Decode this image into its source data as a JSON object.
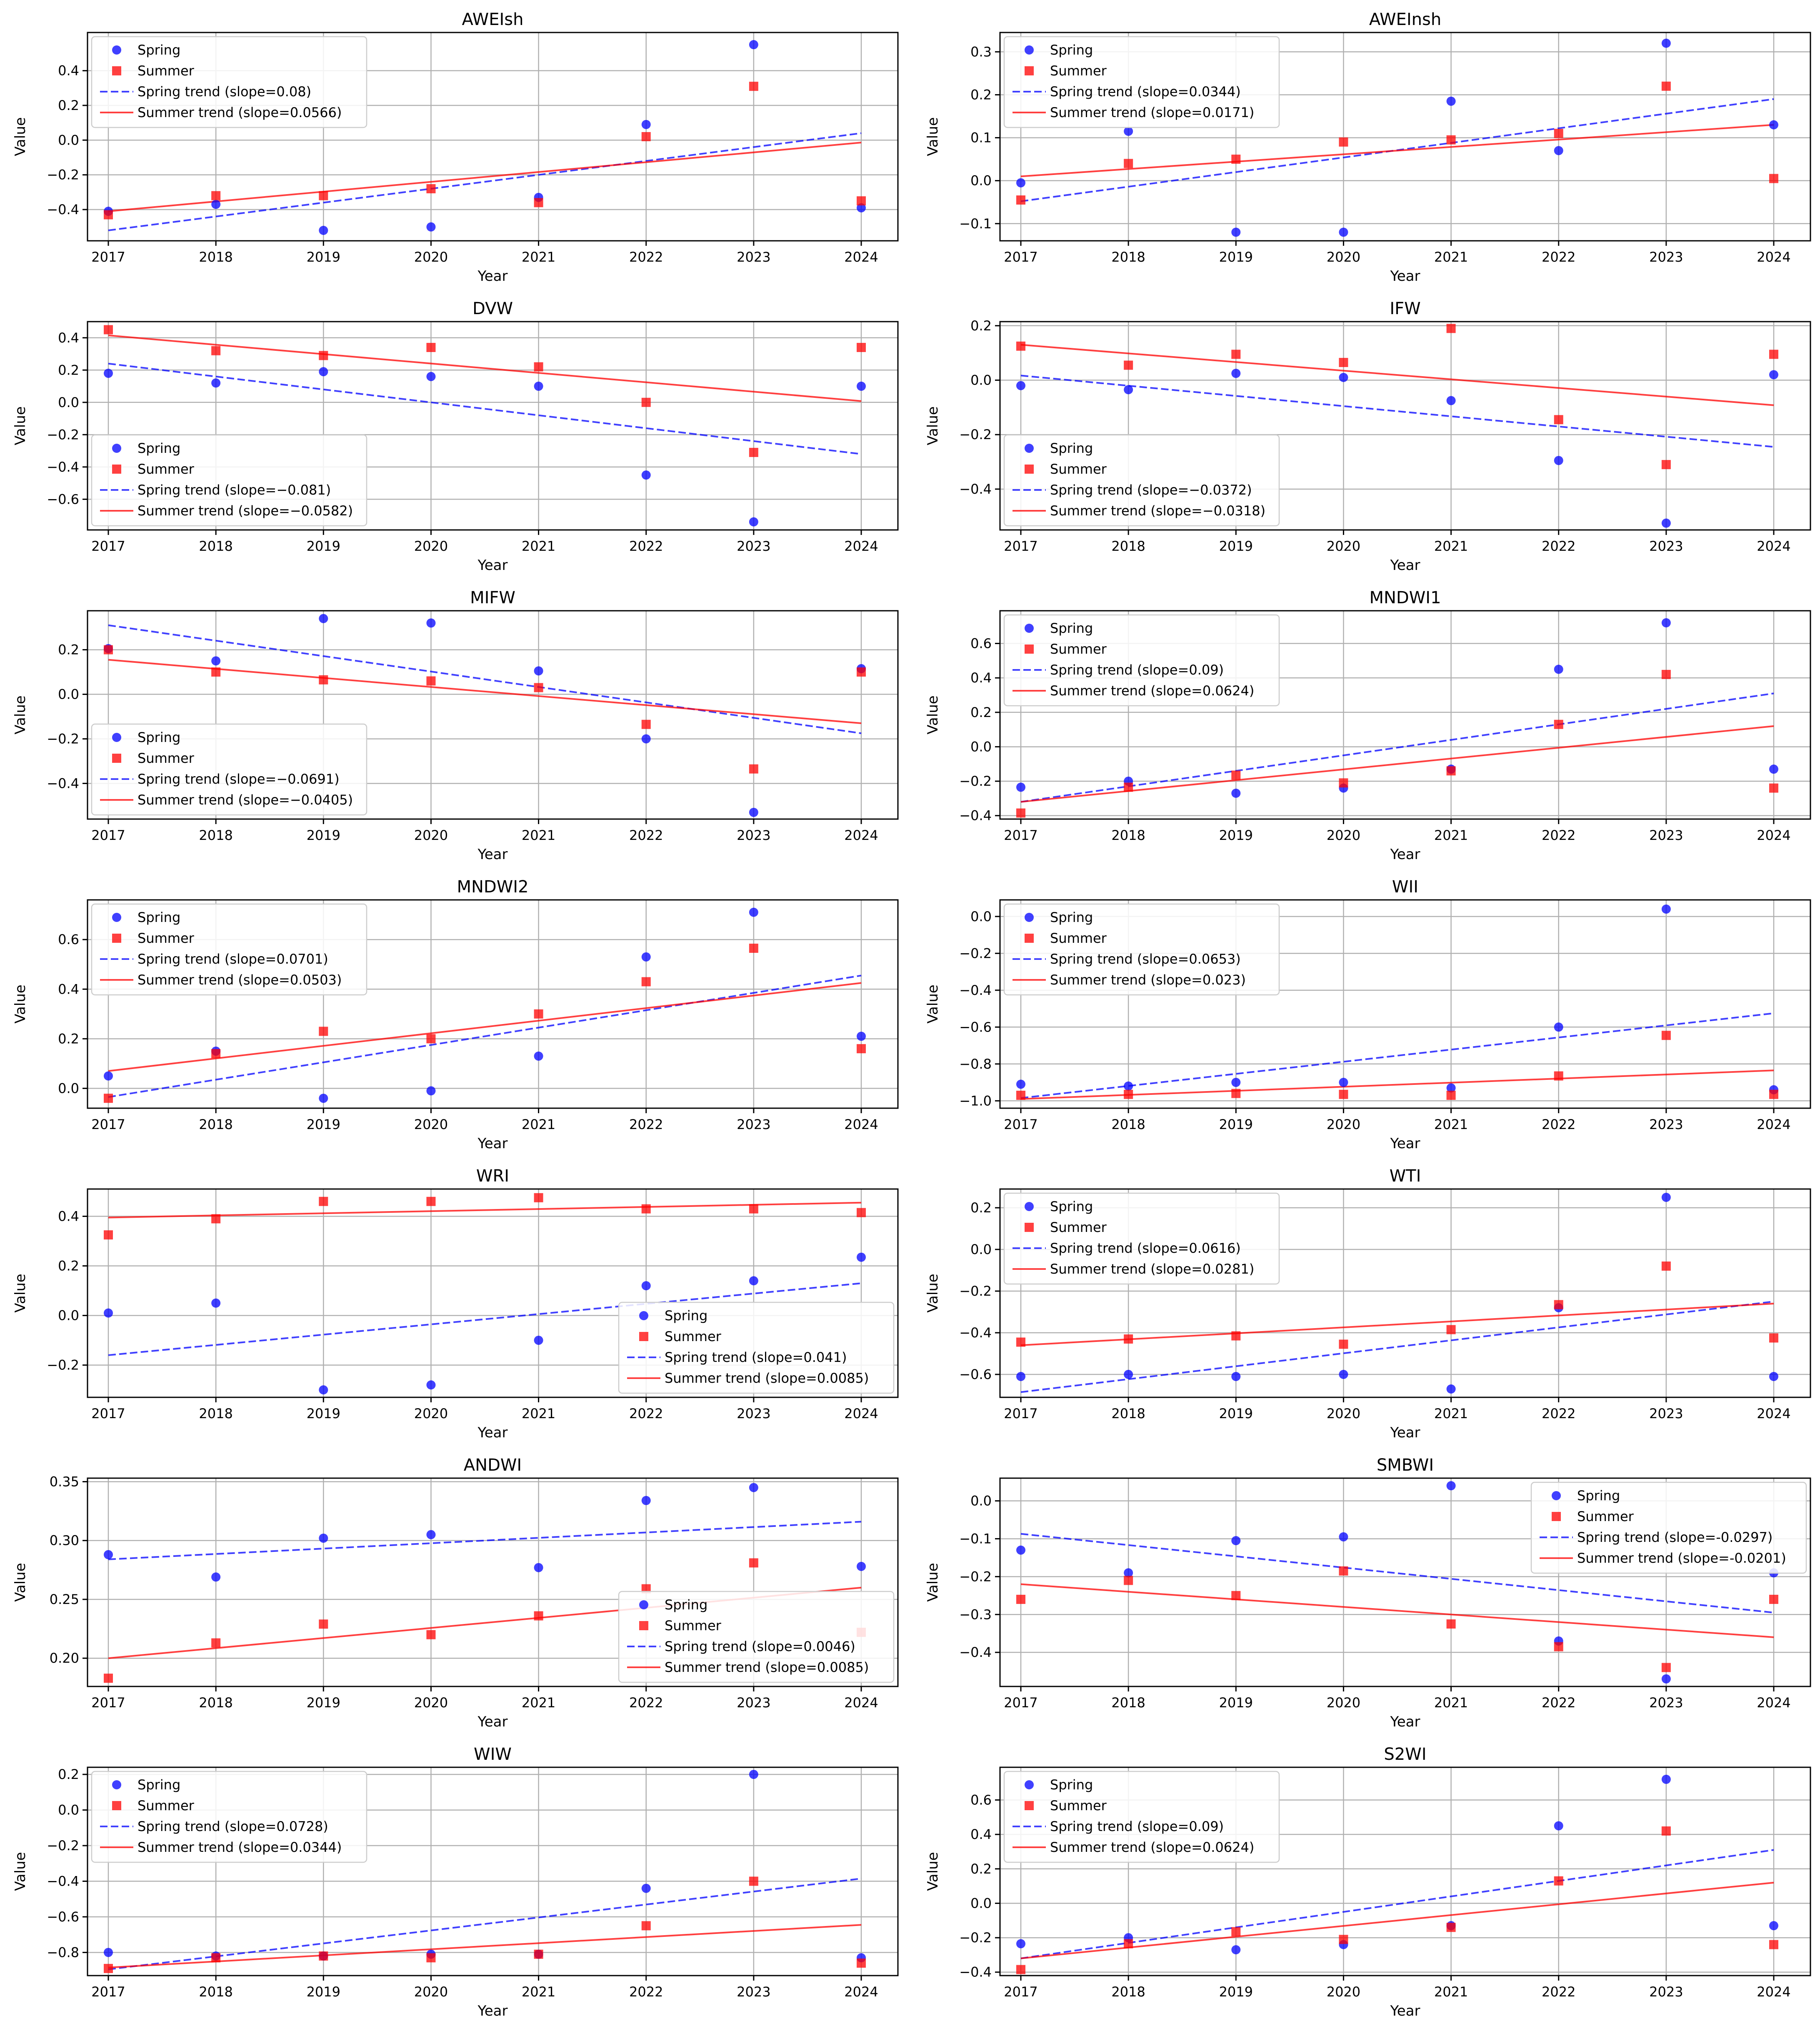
{
  "figure": {
    "xlabel": "Year",
    "ylabel": "Value"
  },
  "chart_data": [
    {
      "type": "scatter",
      "title": "AWEIsh",
      "x": [
        2017,
        2018,
        2019,
        2020,
        2021,
        2022,
        2023,
        2024
      ],
      "spring": [
        -0.41,
        -0.37,
        -0.52,
        -0.5,
        -0.33,
        0.09,
        0.55,
        -0.39
      ],
      "summer": [
        -0.43,
        -0.32,
        -0.32,
        -0.28,
        -0.36,
        0.02,
        0.31,
        -0.35
      ],
      "spring_trend": {
        "start": -0.52,
        "end": 0.04,
        "label": "Spring trend (slope=0.08)"
      },
      "summer_trend": {
        "start": -0.41,
        "end": -0.014,
        "label": "Summer trend (slope=0.0566)"
      },
      "ylim": [
        -0.58,
        0.62
      ],
      "yticks": [
        -0.4,
        -0.2,
        0.0,
        0.2,
        0.4
      ],
      "ytick_labels": [
        "−0.4",
        "−0.2",
        "0.0",
        "0.2",
        "0.4"
      ],
      "legend": "upper-left",
      "legend_labels": [
        "Spring",
        "Summer"
      ]
    },
    {
      "type": "scatter",
      "title": "AWEInsh",
      "x": [
        2017,
        2018,
        2019,
        2020,
        2021,
        2022,
        2023,
        2024
      ],
      "spring": [
        -0.005,
        0.115,
        -0.12,
        -0.12,
        0.185,
        0.07,
        0.32,
        0.13
      ],
      "summer": [
        -0.045,
        0.04,
        0.05,
        0.09,
        0.095,
        0.11,
        0.22,
        0.005
      ],
      "spring_trend": {
        "start": -0.048,
        "end": 0.19,
        "label": "Spring trend (slope=0.0344)"
      },
      "summer_trend": {
        "start": 0.01,
        "end": 0.13,
        "label": "Summer trend (slope=0.0171)"
      },
      "ylim": [
        -0.14,
        0.345
      ],
      "yticks": [
        -0.1,
        0.0,
        0.1,
        0.2,
        0.3
      ],
      "ytick_labels": [
        "−0.1",
        "0.0",
        "0.1",
        "0.2",
        "0.3"
      ],
      "legend": "upper-left",
      "legend_labels": [
        "Spring",
        "Summer"
      ]
    },
    {
      "type": "scatter",
      "title": "DVW",
      "x": [
        2017,
        2018,
        2019,
        2020,
        2021,
        2022,
        2023,
        2024
      ],
      "spring": [
        0.18,
        0.12,
        0.19,
        0.16,
        0.1,
        -0.45,
        -0.74,
        0.1
      ],
      "summer": [
        0.45,
        0.32,
        0.29,
        0.34,
        0.22,
        0.0,
        -0.31,
        0.34
      ],
      "spring_trend": {
        "start": 0.24,
        "end": -0.32,
        "label": "Spring trend (slope=−0.081)"
      },
      "summer_trend": {
        "start": 0.415,
        "end": 0.008,
        "label": "Summer trend (slope=−0.0582)"
      },
      "ylim": [
        -0.79,
        0.5
      ],
      "yticks": [
        -0.6,
        -0.4,
        -0.2,
        0.0,
        0.2,
        0.4
      ],
      "ytick_labels": [
        "−0.6",
        "−0.4",
        "−0.2",
        "0.0",
        "0.2",
        "0.4"
      ],
      "legend": "lower-left",
      "legend_labels": [
        "Spring",
        "Summer"
      ]
    },
    {
      "type": "scatter",
      "title": "IFW",
      "x": [
        2017,
        2018,
        2019,
        2020,
        2021,
        2022,
        2023,
        2024
      ],
      "spring": [
        -0.02,
        -0.035,
        0.025,
        0.01,
        -0.075,
        -0.295,
        -0.525,
        0.02
      ],
      "summer": [
        0.125,
        0.055,
        0.095,
        0.065,
        0.19,
        -0.145,
        -0.31,
        0.095
      ],
      "spring_trend": {
        "start": 0.017,
        "end": -0.245,
        "label": "Spring trend (slope=−0.0372)"
      },
      "summer_trend": {
        "start": 0.13,
        "end": -0.092,
        "label": "Summer trend (slope=−0.0318)"
      },
      "ylim": [
        -0.55,
        0.215
      ],
      "yticks": [
        -0.4,
        -0.2,
        0.0,
        0.2
      ],
      "ytick_labels": [
        "−0.4",
        "−0.2",
        "0.0",
        "0.2"
      ],
      "legend": "lower-left",
      "legend_labels": [
        "Spring",
        "Summer"
      ]
    },
    {
      "type": "scatter",
      "title": "MIFW",
      "x": [
        2017,
        2018,
        2019,
        2020,
        2021,
        2022,
        2023,
        2024
      ],
      "spring": [
        0.205,
        0.15,
        0.34,
        0.32,
        0.105,
        -0.2,
        -0.53,
        0.115
      ],
      "summer": [
        0.2,
        0.1,
        0.065,
        0.06,
        0.03,
        -0.135,
        -0.335,
        0.1
      ],
      "spring_trend": {
        "start": 0.31,
        "end": -0.175,
        "label": "Spring trend (slope=−0.0691)"
      },
      "summer_trend": {
        "start": 0.155,
        "end": -0.13,
        "label": "Summer trend (slope=−0.0405)"
      },
      "ylim": [
        -0.56,
        0.375
      ],
      "yticks": [
        -0.4,
        -0.2,
        0.0,
        0.2
      ],
      "ytick_labels": [
        "−0.4",
        "−0.2",
        "0.0",
        "0.2"
      ],
      "legend": "lower-left",
      "legend_labels": [
        "Spring",
        "Summer"
      ]
    },
    {
      "type": "scatter",
      "title": "MNDWI1",
      "x": [
        2017,
        2018,
        2019,
        2020,
        2021,
        2022,
        2023,
        2024
      ],
      "spring": [
        -0.235,
        -0.2,
        -0.27,
        -0.24,
        -0.13,
        0.45,
        0.72,
        -0.13
      ],
      "summer": [
        -0.385,
        -0.235,
        -0.165,
        -0.21,
        -0.14,
        0.13,
        0.42,
        -0.24
      ],
      "spring_trend": {
        "start": -0.32,
        "end": 0.31,
        "label": "Spring trend (slope=0.09)"
      },
      "summer_trend": {
        "start": -0.32,
        "end": 0.12,
        "label": "Summer trend (slope=0.0624)"
      },
      "ylim": [
        -0.42,
        0.79
      ],
      "yticks": [
        -0.4,
        -0.2,
        0.0,
        0.2,
        0.4,
        0.6
      ],
      "ytick_labels": [
        "−0.4",
        "−0.2",
        "0.0",
        "0.2",
        "0.4",
        "0.6"
      ],
      "legend": "upper-left",
      "legend_labels": [
        "Spring",
        "Summer"
      ]
    },
    {
      "type": "scatter",
      "title": "MNDWI2",
      "x": [
        2017,
        2018,
        2019,
        2020,
        2021,
        2022,
        2023,
        2024
      ],
      "spring": [
        0.05,
        0.15,
        -0.04,
        -0.01,
        0.13,
        0.53,
        0.71,
        0.21
      ],
      "summer": [
        -0.04,
        0.14,
        0.23,
        0.2,
        0.3,
        0.43,
        0.565,
        0.16
      ],
      "spring_trend": {
        "start": -0.035,
        "end": 0.455,
        "label": "Spring trend (slope=0.0701)"
      },
      "summer_trend": {
        "start": 0.07,
        "end": 0.425,
        "label": "Summer trend (slope=0.0503)"
      },
      "ylim": [
        -0.08,
        0.76
      ],
      "yticks": [
        0.0,
        0.2,
        0.4,
        0.6
      ],
      "ytick_labels": [
        "0.0",
        "0.2",
        "0.4",
        "0.6"
      ],
      "legend": "upper-left",
      "legend_labels": [
        "Spring",
        "Summer"
      ]
    },
    {
      "type": "scatter",
      "title": "WII",
      "x": [
        2017,
        2018,
        2019,
        2020,
        2021,
        2022,
        2023,
        2024
      ],
      "spring": [
        -0.91,
        -0.92,
        -0.9,
        -0.9,
        -0.93,
        -0.6,
        0.04,
        -0.94
      ],
      "summer": [
        -0.97,
        -0.965,
        -0.96,
        -0.965,
        -0.97,
        -0.865,
        -0.645,
        -0.965
      ],
      "spring_trend": {
        "start": -0.985,
        "end": -0.525,
        "label": "Spring trend (slope=0.0653)"
      },
      "summer_trend": {
        "start": -0.99,
        "end": -0.835,
        "label": "Summer trend (slope=0.023)"
      },
      "ylim": [
        -1.04,
        0.09
      ],
      "yticks": [
        -1.0,
        -0.8,
        -0.6,
        -0.4,
        -0.2,
        0.0
      ],
      "ytick_labels": [
        "−1.0",
        "−0.8",
        "−0.6",
        "−0.4",
        "−0.2",
        "0.0"
      ],
      "legend": "upper-left",
      "legend_labels": [
        "Spring",
        "Summer"
      ]
    },
    {
      "type": "scatter",
      "title": "WRI",
      "x": [
        2017,
        2018,
        2019,
        2020,
        2021,
        2022,
        2023,
        2024
      ],
      "spring": [
        0.01,
        0.05,
        -0.3,
        -0.28,
        -0.1,
        0.12,
        0.14,
        0.235
      ],
      "summer": [
        0.325,
        0.39,
        0.46,
        0.46,
        0.475,
        0.43,
        0.43,
        0.415
      ],
      "spring_trend": {
        "start": -0.16,
        "end": 0.13,
        "label": "Spring trend (slope=0.041)"
      },
      "summer_trend": {
        "start": 0.395,
        "end": 0.455,
        "label": "Summer trend (slope=0.0085)"
      },
      "ylim": [
        -0.33,
        0.51
      ],
      "yticks": [
        -0.2,
        0.0,
        0.2,
        0.4
      ],
      "ytick_labels": [
        "−0.2",
        "0.0",
        "0.2",
        "0.4"
      ],
      "legend": "lower-right",
      "legend_labels": [
        "Spring",
        "Summer"
      ]
    },
    {
      "type": "scatter",
      "title": "WTI",
      "x": [
        2017,
        2018,
        2019,
        2020,
        2021,
        2022,
        2023,
        2024
      ],
      "spring": [
        -0.61,
        -0.6,
        -0.61,
        -0.6,
        -0.67,
        -0.28,
        0.25,
        -0.61
      ],
      "summer": [
        -0.445,
        -0.43,
        -0.415,
        -0.455,
        -0.385,
        -0.265,
        -0.08,
        -0.425
      ],
      "spring_trend": {
        "start": -0.685,
        "end": -0.25,
        "label": "Spring trend (slope=0.0616)"
      },
      "summer_trend": {
        "start": -0.46,
        "end": -0.26,
        "label": "Summer trend (slope=0.0281)"
      },
      "ylim": [
        -0.71,
        0.29
      ],
      "yticks": [
        -0.6,
        -0.4,
        -0.2,
        0.0,
        0.2
      ],
      "ytick_labels": [
        "−0.6",
        "−0.4",
        "−0.2",
        "0.0",
        "0.2"
      ],
      "legend": "upper-left",
      "legend_labels": [
        "Spring",
        "Summer"
      ]
    },
    {
      "type": "scatter",
      "title": "ANDWI",
      "x": [
        2017,
        2018,
        2019,
        2020,
        2021,
        2022,
        2023,
        2024
      ],
      "spring": [
        0.288,
        0.269,
        0.302,
        0.305,
        0.277,
        0.334,
        0.345,
        0.278
      ],
      "summer": [
        0.183,
        0.213,
        0.229,
        0.22,
        0.236,
        0.259,
        0.281,
        0.222
      ],
      "spring_trend": {
        "start": 0.284,
        "end": 0.316,
        "label": "Spring trend (slope=0.0046)"
      },
      "summer_trend": {
        "start": 0.2,
        "end": 0.26,
        "label": "Summer trend (slope=0.0085)"
      },
      "ylim": [
        0.176,
        0.353
      ],
      "yticks": [
        0.2,
        0.25,
        0.3,
        0.35
      ],
      "ytick_labels": [
        "0.20",
        "0.25",
        "0.30",
        "0.35"
      ],
      "legend": "lower-right",
      "legend_labels": [
        "Spring",
        "Summer"
      ]
    },
    {
      "type": "scatter",
      "title": "SMBWI",
      "x": [
        2017,
        2018,
        2019,
        2020,
        2021,
        2022,
        2023,
        2024
      ],
      "spring": [
        -0.13,
        -0.19,
        -0.105,
        -0.095,
        0.04,
        -0.37,
        -0.47,
        -0.19
      ],
      "summer": [
        -0.26,
        -0.21,
        -0.25,
        -0.185,
        -0.325,
        -0.385,
        -0.44,
        -0.26
      ],
      "spring_trend": {
        "start": -0.087,
        "end": -0.295,
        "label": "Spring trend (slope=-0.0297)"
      },
      "summer_trend": {
        "start": -0.22,
        "end": -0.36,
        "label": "Summer trend (slope=-0.0201)"
      },
      "ylim": [
        -0.49,
        0.06
      ],
      "yticks": [
        -0.4,
        -0.3,
        -0.2,
        -0.1,
        0.0
      ],
      "ytick_labels": [
        "−0.4",
        "−0.3",
        "−0.2",
        "−0.1",
        "0.0"
      ],
      "legend": "upper-right",
      "legend_labels": [
        "Spring",
        "Summer"
      ]
    },
    {
      "type": "scatter",
      "title": "WIW",
      "x": [
        2017,
        2018,
        2019,
        2020,
        2021,
        2022,
        2023,
        2024
      ],
      "spring": [
        -0.8,
        -0.82,
        -0.82,
        -0.81,
        -0.81,
        -0.44,
        0.2,
        -0.83
      ],
      "summer": [
        -0.89,
        -0.83,
        -0.82,
        -0.83,
        -0.81,
        -0.65,
        -0.4,
        -0.86
      ],
      "spring_trend": {
        "start": -0.895,
        "end": -0.385,
        "label": "Spring trend (slope=0.0728)"
      },
      "summer_trend": {
        "start": -0.885,
        "end": -0.645,
        "label": "Summer trend (slope=0.0344)"
      },
      "ylim": [
        -0.93,
        0.24
      ],
      "yticks": [
        -0.8,
        -0.6,
        -0.4,
        -0.2,
        0.0,
        0.2
      ],
      "ytick_labels": [
        "−0.8",
        "−0.6",
        "−0.4",
        "−0.2",
        "0.0",
        "0.2"
      ],
      "legend": "upper-left",
      "legend_labels": [
        "Spring",
        "Summer"
      ]
    },
    {
      "type": "scatter",
      "title": "S2WI",
      "x": [
        2017,
        2018,
        2019,
        2020,
        2021,
        2022,
        2023,
        2024
      ],
      "spring": [
        -0.235,
        -0.2,
        -0.27,
        -0.24,
        -0.13,
        0.45,
        0.72,
        -0.13
      ],
      "summer": [
        -0.385,
        -0.235,
        -0.165,
        -0.21,
        -0.14,
        0.13,
        0.42,
        -0.24
      ],
      "spring_trend": {
        "start": -0.32,
        "end": 0.31,
        "label": "Spring trend (slope=0.09)"
      },
      "summer_trend": {
        "start": -0.32,
        "end": 0.12,
        "label": "Summer trend (slope=0.0624)"
      },
      "ylim": [
        -0.42,
        0.79
      ],
      "yticks": [
        -0.4,
        -0.2,
        0.0,
        0.2,
        0.4,
        0.6
      ],
      "ytick_labels": [
        "−0.4",
        "−0.2",
        "0.0",
        "0.2",
        "0.4",
        "0.6"
      ],
      "legend": "upper-left",
      "legend_labels": [
        "Spring",
        "Summer"
      ]
    }
  ]
}
